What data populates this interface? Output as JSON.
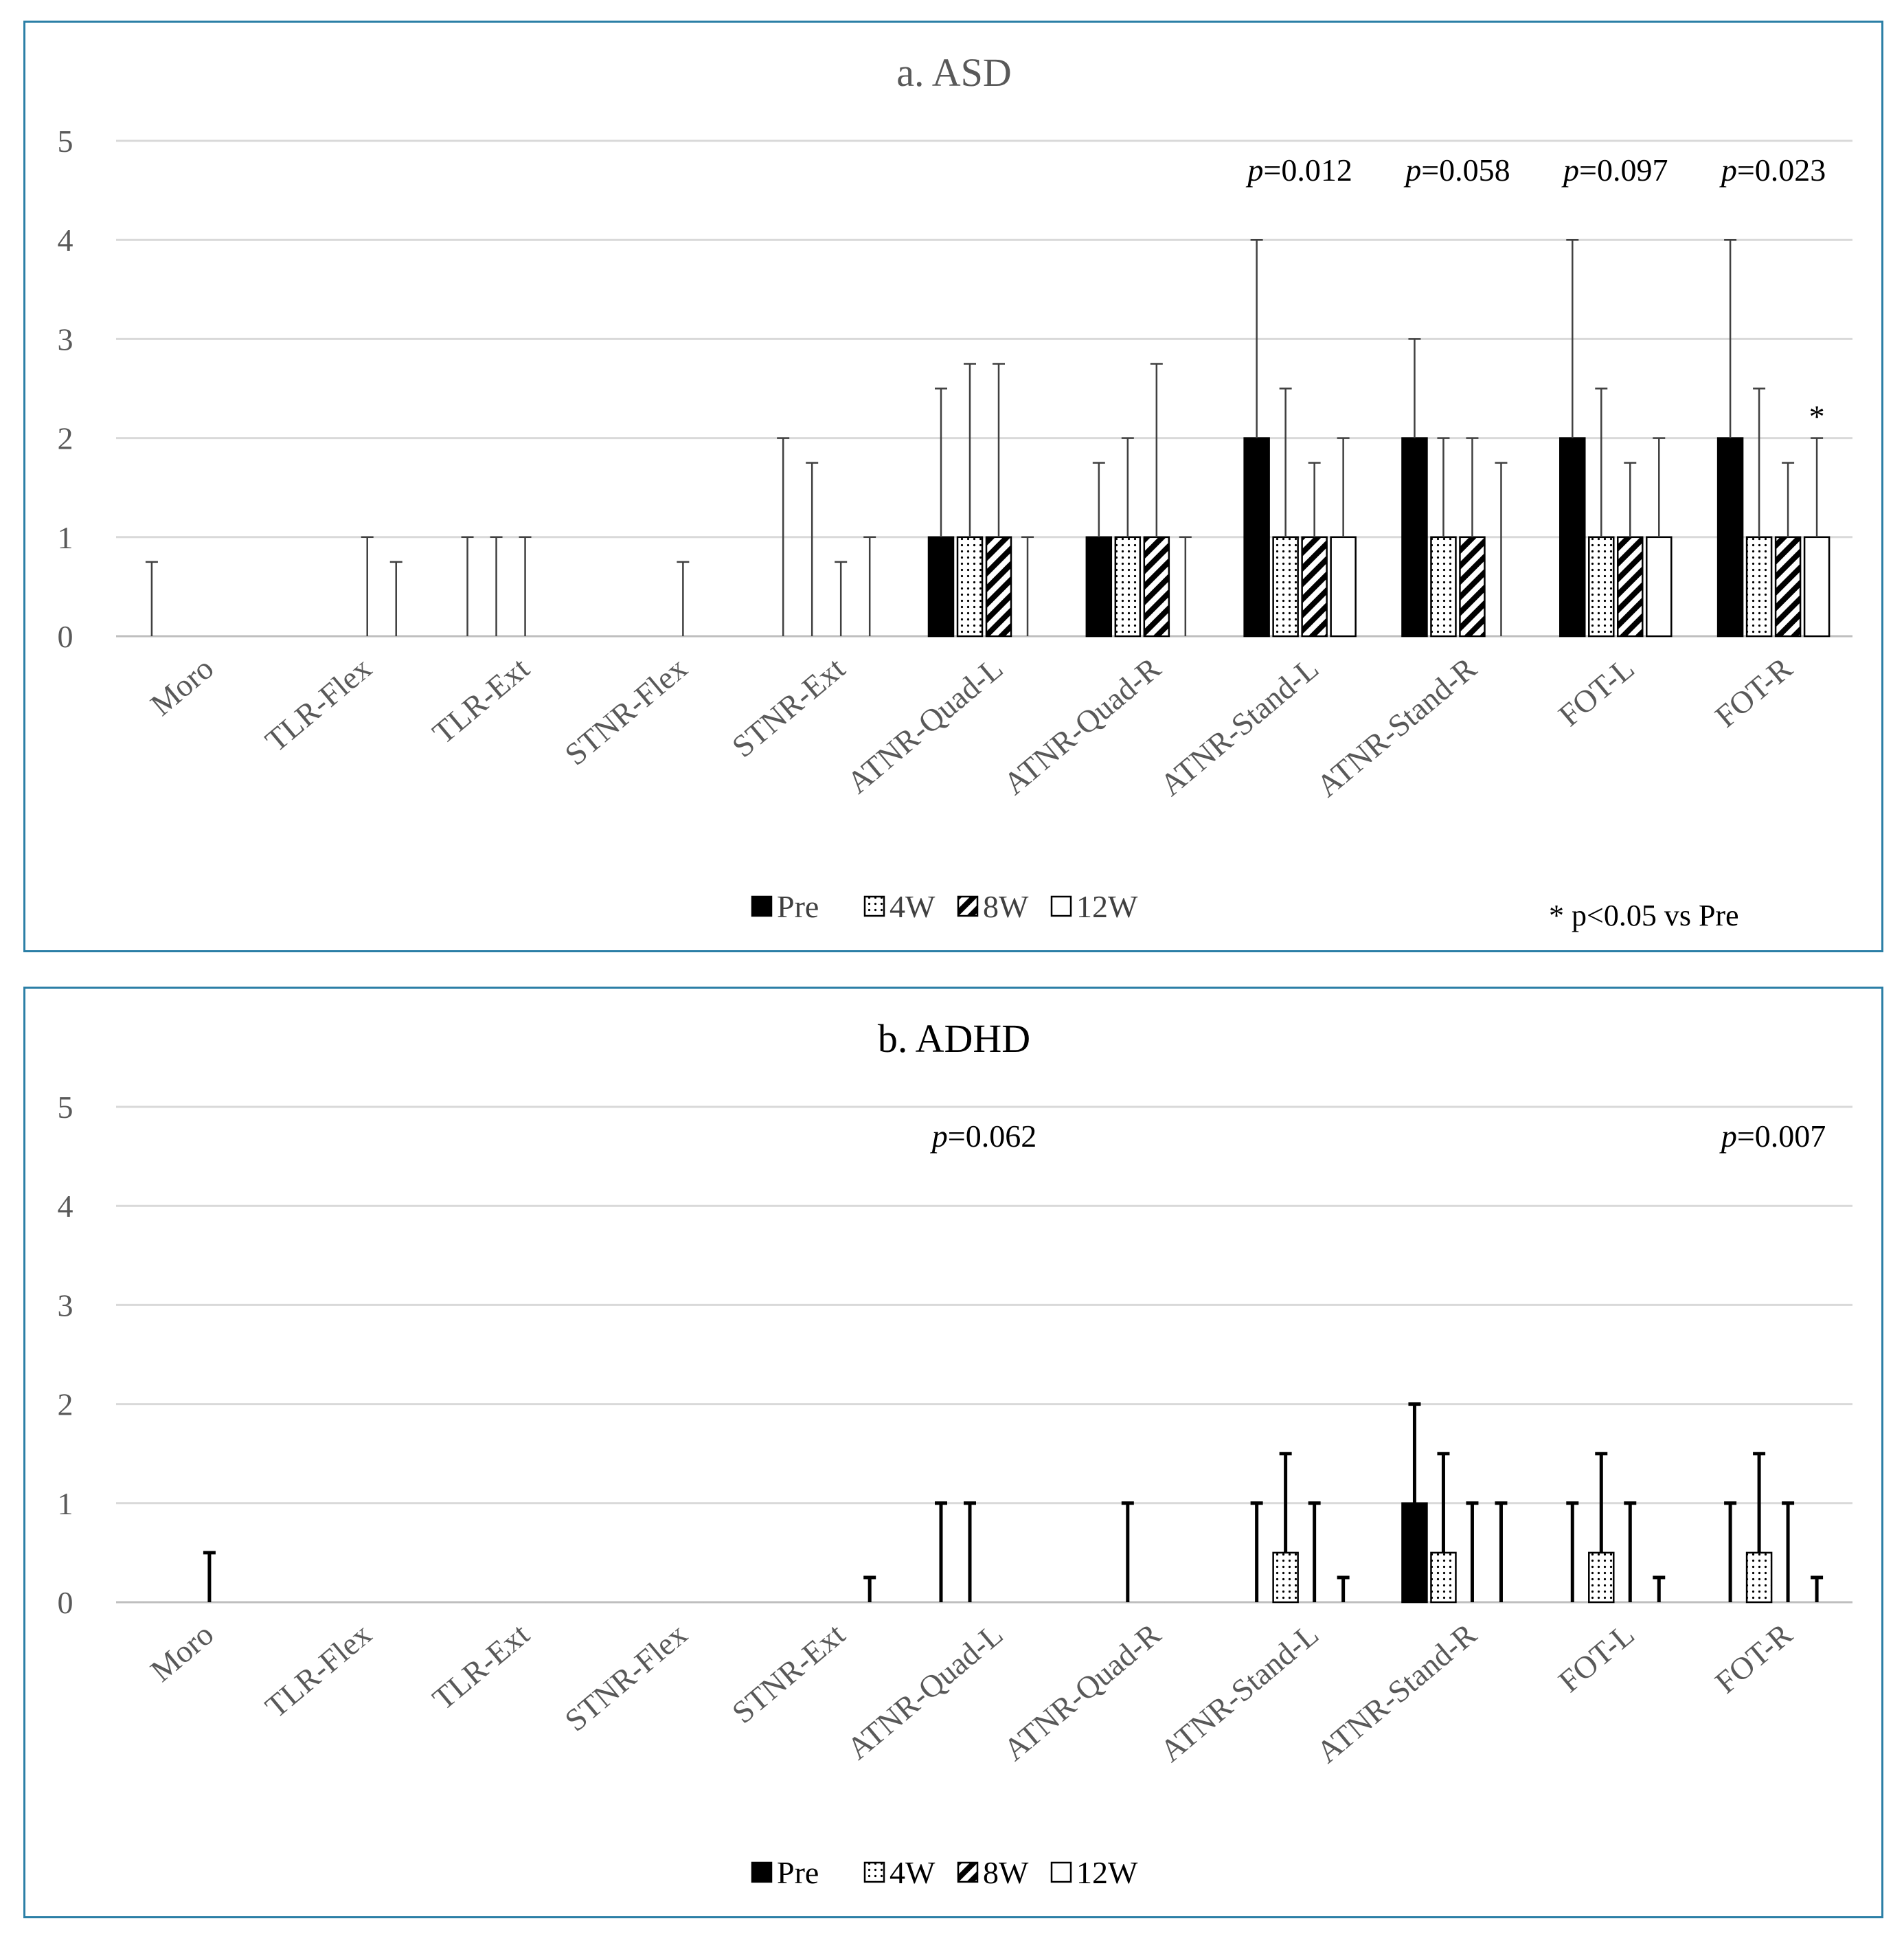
{
  "chart_data": [
    {
      "type": "bar",
      "title": "a. ASD",
      "categories": [
        "Moro",
        "TLR-Flex",
        "TLR-Ext",
        "STNR-Flex",
        "STNR-Ext",
        "ATNR-Quad-L",
        "ATNR-Quad-R",
        "ATNR-Stand-L",
        "ATNR-Stand-R",
        "FOT-L",
        "FOT-R"
      ],
      "ylim": [
        0,
        5
      ],
      "yticks": [
        "0",
        "1",
        "2",
        "3",
        "4",
        "5"
      ],
      "series": [
        {
          "name": "Pre",
          "values": [
            0,
            0,
            0,
            0,
            0,
            1,
            1,
            2,
            2,
            2,
            2
          ],
          "upper": [
            0.75,
            0,
            1,
            0,
            2,
            2.5,
            1.75,
            4,
            3,
            4,
            4
          ]
        },
        {
          "name": "4W",
          "values": [
            0,
            0,
            0,
            0,
            0,
            1,
            1,
            1,
            1,
            1,
            1
          ],
          "upper": [
            0,
            0,
            1,
            0,
            1.75,
            2.75,
            2,
            2.5,
            2,
            2.5,
            2.5
          ]
        },
        {
          "name": "8W",
          "values": [
            0,
            0,
            0,
            0,
            0,
            1,
            1,
            1,
            1,
            1,
            1
          ],
          "upper": [
            0,
            1,
            1,
            0.75,
            0.75,
            2.75,
            2.75,
            1.75,
            2,
            1.75,
            1.75
          ]
        },
        {
          "name": "12W",
          "values": [
            0,
            0,
            0,
            0,
            0,
            0,
            0,
            1,
            0,
            1,
            1
          ],
          "upper": [
            0,
            0.75,
            0,
            0,
            1,
            1,
            1,
            2,
            1.75,
            2,
            2
          ]
        }
      ],
      "p_values": [
        {
          "category": "ATNR-Stand-L",
          "label": "p",
          "value": "=0.012"
        },
        {
          "category": "ATNR-Stand-R",
          "label": "p",
          "value": "=0.058"
        },
        {
          "category": "FOT-L",
          "label": "p",
          "value": "=0.097"
        },
        {
          "category": "FOT-R",
          "label": "p",
          "value": "=0.023"
        }
      ],
      "significance": [
        {
          "category": "FOT-R",
          "series": "12W",
          "mark": "*"
        }
      ],
      "legend": [
        "Pre",
        "4W",
        "8W",
        "12W"
      ],
      "note": "* p<0.05 vs Pre"
    },
    {
      "type": "bar",
      "title": "b. ADHD",
      "categories": [
        "Moro",
        "TLR-Flex",
        "TLR-Ext",
        "STNR-Flex",
        "STNR-Ext",
        "ATNR-Quad-L",
        "ATNR-Quad-R",
        "ATNR-Stand-L",
        "ATNR-Stand-R",
        "FOT-L",
        "FOT-R"
      ],
      "ylim": [
        0,
        5
      ],
      "yticks": [
        "0",
        "1",
        "2",
        "3",
        "4",
        "5"
      ],
      "series": [
        {
          "name": "Pre",
          "values": [
            0,
            0,
            0,
            0,
            0,
            0,
            0,
            0,
            1,
            0,
            0
          ],
          "upper": [
            0,
            0,
            0,
            0,
            0,
            1,
            0,
            1,
            2,
            1,
            1
          ]
        },
        {
          "name": "4W",
          "values": [
            0,
            0,
            0,
            0,
            0,
            0,
            0,
            0.5,
            0.5,
            0.5,
            0.5
          ],
          "upper": [
            0,
            0,
            0,
            0,
            0,
            1,
            1,
            1.5,
            1.5,
            1.5,
            1.5
          ]
        },
        {
          "name": "8W",
          "values": [
            0,
            0,
            0,
            0,
            0,
            0,
            0,
            0,
            0,
            0,
            0
          ],
          "upper": [
            0.5,
            0,
            0,
            0,
            0,
            0,
            0,
            1,
            1,
            1,
            1
          ]
        },
        {
          "name": "12W",
          "values": [
            0,
            0,
            0,
            0,
            0,
            0,
            0,
            0,
            0,
            0,
            0
          ],
          "upper": [
            0,
            0,
            0,
            0,
            0.25,
            0,
            0,
            0.25,
            1,
            0.25,
            0.25
          ]
        }
      ],
      "p_values": [
        {
          "category": "ATNR-Quad-L",
          "label": "p",
          "value": "=0.062"
        },
        {
          "category": "FOT-R",
          "label": "p",
          "value": "=0.007"
        }
      ],
      "legend": [
        "Pre",
        "4W",
        "8W",
        "12W"
      ]
    }
  ]
}
